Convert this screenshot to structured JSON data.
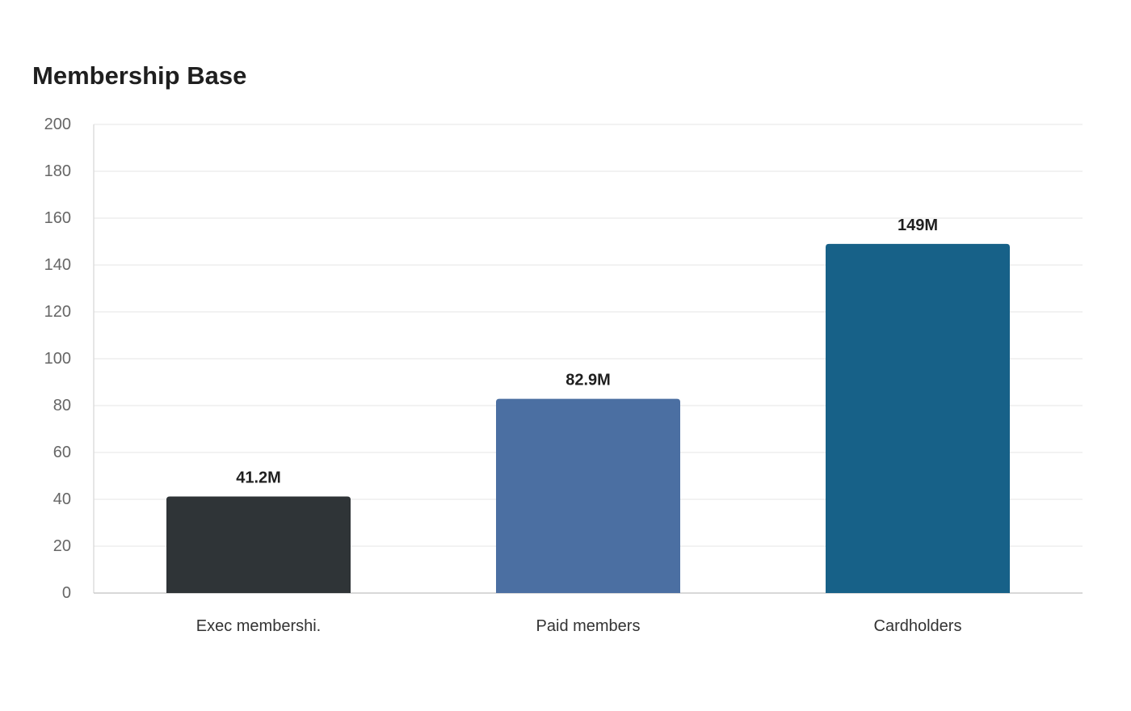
{
  "chart_data": {
    "type": "bar",
    "title": "Membership Base",
    "xlabel": "",
    "ylabel": "",
    "ylim": [
      0,
      200
    ],
    "yticks": [
      0,
      20,
      40,
      60,
      80,
      100,
      120,
      140,
      160,
      180,
      200
    ],
    "grid": true,
    "categories": [
      "Exec membershi.",
      "Paid members",
      "Cardholders"
    ],
    "values": [
      41.2,
      82.9,
      149
    ],
    "data_labels": [
      "41.2M",
      "82.9M",
      "149M"
    ],
    "colors": [
      "#2f3437",
      "#4b6fa2",
      "#176188"
    ]
  }
}
